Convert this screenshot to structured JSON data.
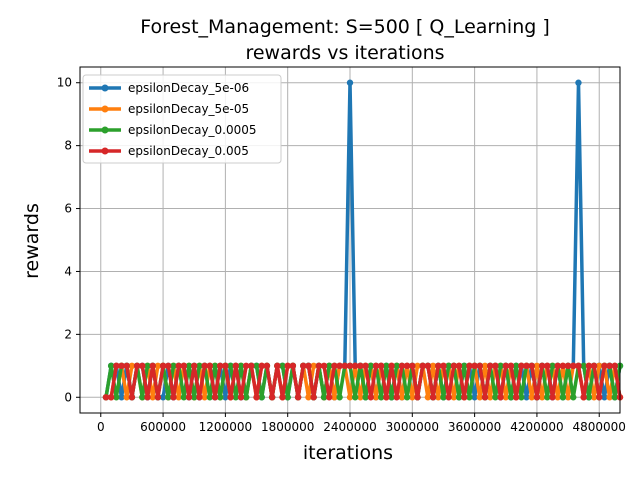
{
  "chart_data": {
    "type": "line",
    "title": "Forest_Management: S=500 [ Q_Learning ]",
    "subtitle": "rewards vs iterations",
    "xlabel": "iterations",
    "ylabel": "rewards",
    "xlim": [
      -200000,
      5000000
    ],
    "ylim": [
      -0.5,
      10.5
    ],
    "x_ticks": [
      0,
      600000,
      1200000,
      1800000,
      2400000,
      3000000,
      3600000,
      4200000,
      4800000
    ],
    "x_tick_labels": [
      "0",
      "600000",
      "1200000",
      "1800000",
      "2400000",
      "3000000",
      "3600000",
      "4200000",
      "4800000"
    ],
    "y_ticks": [
      0,
      2,
      4,
      6,
      8,
      10
    ],
    "y_tick_labels": [
      "0",
      "2",
      "4",
      "6",
      "8",
      "10"
    ],
    "grid": true,
    "legend_position": "top-left",
    "x": [
      50000,
      100000,
      150000,
      200000,
      250000,
      300000,
      350000,
      400000,
      450000,
      500000,
      550000,
      600000,
      650000,
      700000,
      750000,
      800000,
      850000,
      900000,
      950000,
      1000000,
      1050000,
      1100000,
      1150000,
      1200000,
      1250000,
      1300000,
      1350000,
      1400000,
      1450000,
      1500000,
      1550000,
      1600000,
      1650000,
      1700000,
      1750000,
      1800000,
      1850000,
      1900000,
      1950000,
      2000000,
      2050000,
      2100000,
      2150000,
      2200000,
      2250000,
      2300000,
      2350000,
      2400000,
      2450000,
      2500000,
      2550000,
      2600000,
      2650000,
      2700000,
      2750000,
      2800000,
      2850000,
      2900000,
      2950000,
      3000000,
      3050000,
      3100000,
      3150000,
      3200000,
      3250000,
      3300000,
      3350000,
      3400000,
      3450000,
      3500000,
      3550000,
      3600000,
      3650000,
      3700000,
      3750000,
      3800000,
      3850000,
      3900000,
      3950000,
      4000000,
      4050000,
      4100000,
      4150000,
      4200000,
      4250000,
      4300000,
      4350000,
      4400000,
      4450000,
      4500000,
      4550000,
      4600000,
      4650000,
      4700000,
      4750000,
      4800000,
      4850000,
      4900000,
      4950000,
      5000000
    ],
    "series": [
      {
        "name": "epsilonDecay_5e-06",
        "color": "#1f77b4",
        "values": [
          0,
          1,
          1,
          0,
          1,
          0,
          1,
          1,
          0,
          1,
          0,
          0,
          1,
          0,
          1,
          1,
          0,
          1,
          0,
          1,
          1,
          0,
          1,
          0,
          1,
          1,
          0,
          0,
          1,
          1,
          0,
          1,
          0,
          1,
          1,
          0,
          1,
          0,
          1,
          1,
          0,
          1,
          0,
          1,
          0,
          1,
          1,
          10,
          1,
          1,
          0,
          1,
          0,
          1,
          1,
          0,
          1,
          0,
          1,
          1,
          0,
          1,
          1,
          0,
          1,
          0,
          1,
          1,
          0,
          1,
          1,
          0,
          1,
          0,
          1,
          1,
          0,
          1,
          0,
          1,
          1,
          0,
          1,
          0,
          1,
          1,
          0,
          1,
          0,
          1,
          1,
          10,
          1,
          0,
          1,
          1,
          0,
          1,
          0,
          1
        ]
      },
      {
        "name": "epsilonDecay_5e-05",
        "color": "#ff7f0e",
        "values": [
          0,
          0,
          1,
          1,
          0,
          1,
          1,
          0,
          1,
          0,
          1,
          1,
          0,
          1,
          0,
          1,
          1,
          0,
          1,
          0,
          1,
          1,
          0,
          1,
          0,
          1,
          1,
          0,
          1,
          0,
          1,
          1,
          0,
          1,
          0,
          1,
          1,
          0,
          1,
          0,
          1,
          1,
          0,
          1,
          0,
          1,
          1,
          0,
          1,
          0,
          1,
          1,
          0,
          1,
          0,
          1,
          1,
          0,
          1,
          0,
          1,
          1,
          0,
          1,
          0,
          1,
          1,
          0,
          1,
          0,
          1,
          1,
          0,
          1,
          0,
          1,
          1,
          0,
          1,
          0,
          1,
          1,
          0,
          1,
          0,
          1,
          1,
          0,
          1,
          0,
          1,
          1,
          0,
          1,
          0,
          1,
          1,
          0,
          1,
          0
        ]
      },
      {
        "name": "epsilonDecay_0.0005",
        "color": "#2ca02c",
        "values": [
          0,
          1,
          0,
          1,
          1,
          0,
          1,
          0,
          1,
          1,
          0,
          1,
          0,
          1,
          1,
          0,
          1,
          0,
          1,
          1,
          0,
          1,
          0,
          1,
          1,
          0,
          1,
          0,
          1,
          1,
          0,
          1,
          0,
          1,
          1,
          0,
          1,
          0,
          1,
          1,
          0,
          1,
          0,
          1,
          1,
          0,
          1,
          1,
          0,
          1,
          0,
          1,
          1,
          0,
          1,
          0,
          1,
          1,
          0,
          1,
          0,
          1,
          1,
          0,
          1,
          0,
          1,
          1,
          0,
          1,
          0,
          1,
          1,
          0,
          1,
          0,
          1,
          1,
          0,
          1,
          0,
          1,
          1,
          0,
          1,
          0,
          1,
          1,
          0,
          1,
          0,
          1,
          1,
          0,
          1,
          0,
          1,
          1,
          0,
          1
        ]
      },
      {
        "name": "epsilonDecay_0.005",
        "color": "#d62728",
        "values": [
          0,
          0,
          1,
          1,
          1,
          0,
          1,
          1,
          0,
          1,
          0,
          1,
          1,
          0,
          1,
          1,
          0,
          1,
          0,
          1,
          1,
          0,
          1,
          1,
          0,
          1,
          0,
          1,
          1,
          0,
          1,
          1,
          0,
          1,
          0,
          1,
          1,
          0,
          1,
          1,
          0,
          1,
          1,
          0,
          1,
          1,
          1,
          1,
          1,
          1,
          1,
          0,
          1,
          1,
          0,
          1,
          0,
          1,
          1,
          1,
          0,
          1,
          1,
          0,
          1,
          1,
          0,
          1,
          1,
          0,
          1,
          1,
          1,
          0,
          1,
          1,
          0,
          1,
          1,
          0,
          1,
          1,
          1,
          0,
          1,
          1,
          0,
          1,
          1,
          1,
          1,
          1,
          0,
          1,
          1,
          0,
          1,
          1,
          1,
          0
        ]
      }
    ]
  }
}
